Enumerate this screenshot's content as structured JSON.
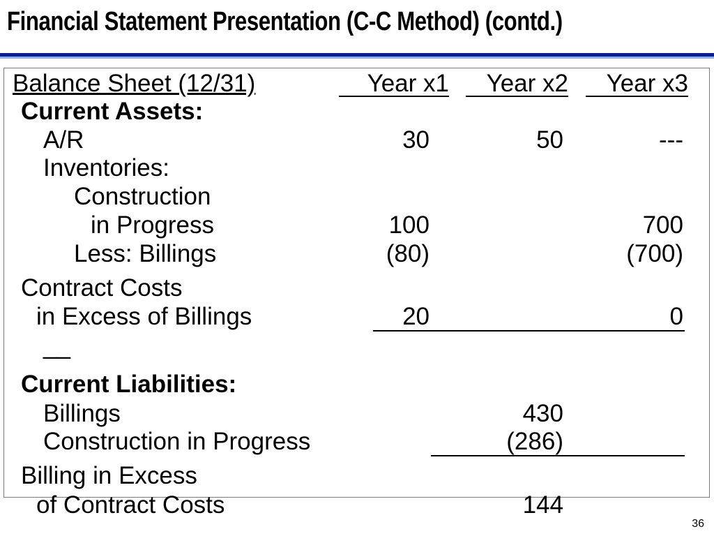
{
  "title": "Financial Statement Presentation (C-C Method) (contd.)",
  "header": {
    "label": "Balance Sheet (12/31)",
    "years": [
      "Year x1",
      "Year x2",
      "Year x3"
    ]
  },
  "current_assets": {
    "heading": "Current Assets:",
    "ar_label": "A/R",
    "ar_values": [
      "30",
      "50",
      "---"
    ],
    "inventories_label": "Inventories:",
    "construction_label": "Construction",
    "in_progress_label": "in Progress",
    "in_progress_values": [
      "100",
      "700"
    ],
    "less_billings_label": "Less: Billings",
    "less_billings_values": [
      "(80)",
      "(700)"
    ],
    "cc_label_1": "Contract Costs",
    "cc_label_2": "in Excess of Billings",
    "cc_values": [
      "20",
      "0"
    ],
    "dash": "__"
  },
  "current_liabilities": {
    "heading": "Current Liabilities:",
    "billings_label": "Billings",
    "billings_value": "430",
    "cip_label": "Construction in Progress",
    "cip_value": "(286)",
    "bie_label_1": "Billing in Excess",
    "bie_label_2": "of Contract Costs",
    "bie_value": "144"
  },
  "page_number": "36"
}
